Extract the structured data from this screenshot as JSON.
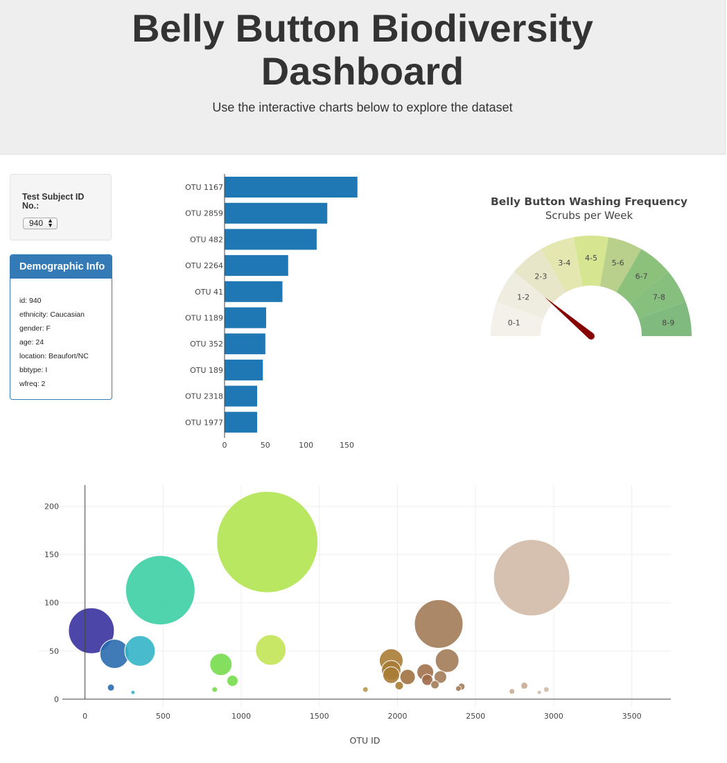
{
  "header": {
    "title_line1": "Belly Button Biodiversity",
    "title_line2": "Dashboard",
    "subtitle": "Use the interactive charts below to explore the dataset"
  },
  "selector": {
    "label": "Test Subject ID No.:",
    "value": "940"
  },
  "demographics": {
    "heading": "Demographic Info",
    "items": [
      "id: 940",
      "ethnicity: Caucasian",
      "gender: F",
      "age: 24",
      "location: Beaufort/NC",
      "bbtype: I",
      "wfreq: 2"
    ]
  },
  "chart_data": [
    {
      "type": "bar",
      "orientation": "horizontal",
      "categories": [
        "OTU 1167",
        "OTU 2859",
        "OTU 482",
        "OTU 2264",
        "OTU 41",
        "OTU 1189",
        "OTU 352",
        "OTU 189",
        "OTU 2318",
        "OTU 1977"
      ],
      "values": [
        163,
        126,
        113,
        78,
        71,
        51,
        50,
        47,
        40,
        40
      ],
      "xlim": [
        0,
        170
      ],
      "xticks": [
        0,
        50,
        100,
        150
      ],
      "color": "#1f77b4"
    },
    {
      "type": "gauge",
      "title": "Belly Button Washing Frequency",
      "subtitle": "Scrubs per Week",
      "range": [
        0,
        9
      ],
      "value": 2,
      "steps": [
        {
          "label": "0-1",
          "color": "#f4f1ea"
        },
        {
          "label": "1-2",
          "color": "#efece0"
        },
        {
          "label": "2-3",
          "color": "#e8e6c8"
        },
        {
          "label": "3-4",
          "color": "#e4e8b0"
        },
        {
          "label": "4-5",
          "color": "#d6e590"
        },
        {
          "label": "5-6",
          "color": "#b8d08c"
        },
        {
          "label": "6-7",
          "color": "#8cc17c"
        },
        {
          "label": "7-8",
          "color": "#87bf7f"
        },
        {
          "label": "8-9",
          "color": "#81ba7f"
        }
      ],
      "needle_color": "#850000"
    },
    {
      "type": "scatter",
      "xlabel": "OTU ID",
      "xlim": [
        -300,
        3750
      ],
      "ylim": [
        -8,
        222
      ],
      "xticks": [
        0,
        500,
        1000,
        1500,
        2000,
        2500,
        3000,
        3500
      ],
      "yticks": [
        0,
        50,
        100,
        150,
        200
      ],
      "grid": true,
      "points": [
        {
          "x": 41,
          "y": 71,
          "r": 33,
          "color": "#3a32a0"
        },
        {
          "x": 189,
          "y": 47,
          "r": 21,
          "color": "#2b6db0"
        },
        {
          "x": 166,
          "y": 12,
          "r": 5,
          "color": "#2b6db0"
        },
        {
          "x": 352,
          "y": 50,
          "r": 22,
          "color": "#34b5c8"
        },
        {
          "x": 307,
          "y": 7,
          "r": 3,
          "color": "#34b5c8"
        },
        {
          "x": 482,
          "y": 113,
          "r": 50,
          "color": "#3ccfa5"
        },
        {
          "x": 870,
          "y": 36,
          "r": 16,
          "color": "#75dc4b"
        },
        {
          "x": 944,
          "y": 19,
          "r": 8,
          "color": "#75dc4b"
        },
        {
          "x": 830,
          "y": 10,
          "r": 4,
          "color": "#75dc4b"
        },
        {
          "x": 1167,
          "y": 163,
          "r": 73,
          "color": "#b2e451"
        },
        {
          "x": 1189,
          "y": 51,
          "r": 22,
          "color": "#c2e455"
        },
        {
          "x": 1795,
          "y": 10,
          "r": 4,
          "color": "#b59a4e"
        },
        {
          "x": 1960,
          "y": 40,
          "r": 17,
          "color": "#a87c35"
        },
        {
          "x": 1960,
          "y": 30,
          "r": 14,
          "color": "#a87c35"
        },
        {
          "x": 1960,
          "y": 25,
          "r": 12,
          "color": "#a87c35"
        },
        {
          "x": 2011,
          "y": 14,
          "r": 6,
          "color": "#a87c35"
        },
        {
          "x": 2065,
          "y": 23,
          "r": 11,
          "color": "#9f7240"
        },
        {
          "x": 2178,
          "y": 28,
          "r": 12,
          "color": "#a0714c"
        },
        {
          "x": 2191,
          "y": 20,
          "r": 8,
          "color": "#9c6a46"
        },
        {
          "x": 2264,
          "y": 78,
          "r": 35,
          "color": "#a27b58"
        },
        {
          "x": 2318,
          "y": 40,
          "r": 17,
          "color": "#a27b58"
        },
        {
          "x": 2275,
          "y": 23,
          "r": 9,
          "color": "#a27b58"
        },
        {
          "x": 2240,
          "y": 15,
          "r": 6,
          "color": "#a27b58"
        },
        {
          "x": 2410,
          "y": 13,
          "r": 5,
          "color": "#a27b58"
        },
        {
          "x": 2390,
          "y": 11,
          "r": 4,
          "color": "#a27b58"
        },
        {
          "x": 2859,
          "y": 126,
          "r": 55,
          "color": "#d2b9a6"
        },
        {
          "x": 2812,
          "y": 14,
          "r": 5,
          "color": "#c9ab94"
        },
        {
          "x": 2733,
          "y": 8,
          "r": 4,
          "color": "#c9ab94"
        },
        {
          "x": 2953,
          "y": 10,
          "r": 4,
          "color": "#d2b9a6"
        },
        {
          "x": 2908,
          "y": 7,
          "r": 3,
          "color": "#d2b9a6"
        }
      ]
    }
  ]
}
